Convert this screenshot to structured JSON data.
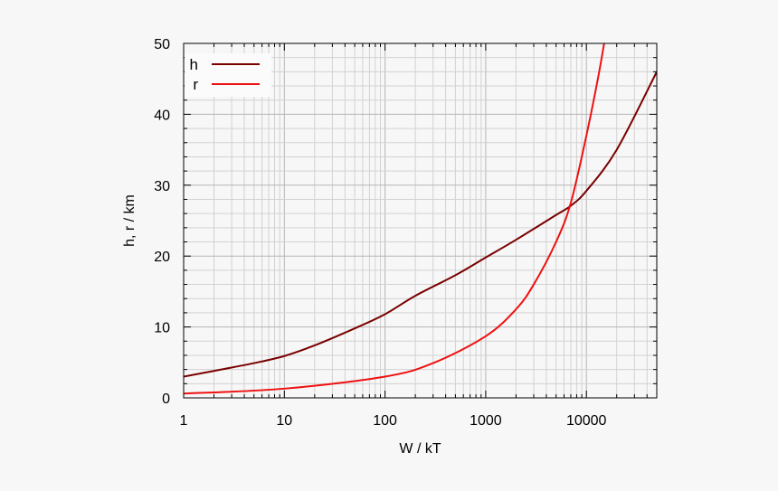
{
  "chart_data": {
    "type": "line",
    "xlabel": "W / kT",
    "ylabel": "h, r / km",
    "xscale": "log",
    "xlim": [
      1,
      50000
    ],
    "ylim": [
      0,
      50
    ],
    "grid": true,
    "legend_position": "top-left",
    "x_ticks": [
      1,
      10,
      100,
      1000,
      10000
    ],
    "x_tick_labels": [
      "1",
      "10",
      "100",
      "1000",
      "10000"
    ],
    "y_ticks": [
      0,
      10,
      20,
      30,
      40,
      50
    ],
    "y_tick_labels": [
      "0",
      "10",
      "20",
      "30",
      "40",
      "50"
    ],
    "series": [
      {
        "name": "h",
        "color": "#7a0000",
        "x": [
          1,
          2,
          5,
          10,
          20,
          50,
          100,
          200,
          500,
          1000,
          2000,
          5000,
          7000,
          10000,
          20000,
          50000
        ],
        "y": [
          3.0,
          3.8,
          4.9,
          5.9,
          7.4,
          9.8,
          11.8,
          14.4,
          17.3,
          19.8,
          22.3,
          25.8,
          27.1,
          29.2,
          35.0,
          46.0
        ]
      },
      {
        "name": "r",
        "color": "#ee1111",
        "x": [
          1,
          10,
          100,
          300,
          1000,
          2000,
          3000,
          5000,
          7000,
          10000,
          13000,
          15000
        ],
        "y": [
          0.6,
          1.3,
          3.0,
          4.9,
          8.7,
          12.5,
          16.0,
          22.0,
          27.5,
          37.0,
          45.0,
          50.0
        ]
      }
    ]
  }
}
